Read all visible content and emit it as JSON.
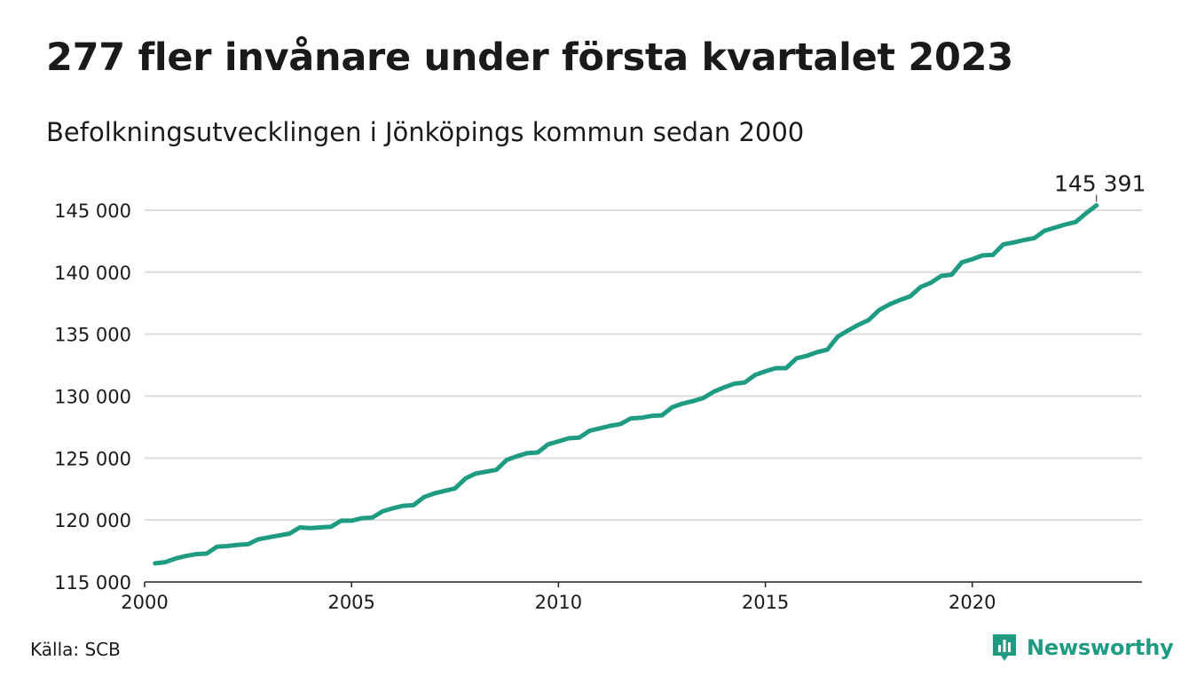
{
  "title": "277 fler invånare under första kvartalet 2023",
  "subtitle": "Befolkningsutvecklingen i Jönköpings kommun sedan 2000",
  "source": "Källa: SCB",
  "brand": {
    "name": "Newsworthy",
    "icon": "newsworthy-logo-icon",
    "color": "#1f9b83"
  },
  "chart_data": {
    "type": "line",
    "title": "277 fler invånare under första kvartalet 2023",
    "subtitle": "Befolkningsutvecklingen i Jönköpings kommun sedan 2000",
    "xlabel": "",
    "ylabel": "",
    "line_color": "#1f9b83",
    "grid": true,
    "xlim": [
      2000,
      2024.1
    ],
    "ylim": [
      115000,
      147000
    ],
    "x_ticks": [
      2000,
      2005,
      2010,
      2015,
      2020
    ],
    "x_tick_labels": [
      "2000",
      "2005",
      "2010",
      "2015",
      "2020"
    ],
    "y_ticks": [
      115000,
      120000,
      125000,
      130000,
      135000,
      140000,
      145000
    ],
    "y_tick_labels": [
      "115 000",
      "120 000",
      "125 000",
      "130 000",
      "135 000",
      "140 000",
      "145 000"
    ],
    "annotation": {
      "x": 2023.0,
      "y": 145391,
      "label": "145 391"
    },
    "series": [
      {
        "x": [
          2000.25,
          2000.5,
          2000.75,
          2001.0,
          2001.25,
          2001.5,
          2001.75,
          2002.0,
          2002.25,
          2002.5,
          2002.75,
          2003.0,
          2003.25,
          2003.5,
          2003.75,
          2004.0,
          2004.25,
          2004.5,
          2004.75,
          2005.0,
          2005.25,
          2005.5,
          2005.75,
          2006.0,
          2006.25,
          2006.5,
          2006.75,
          2007.0,
          2007.25,
          2007.5,
          2007.75,
          2008.0,
          2008.25,
          2008.5,
          2008.75,
          2009.0,
          2009.25,
          2009.5,
          2009.75,
          2010.0,
          2010.25,
          2010.5,
          2010.75,
          2011.0,
          2011.25,
          2011.5,
          2011.75,
          2012.0,
          2012.25,
          2012.5,
          2012.75,
          2013.0,
          2013.25,
          2013.5,
          2013.75,
          2014.0,
          2014.25,
          2014.5,
          2014.75,
          2015.0,
          2015.25,
          2015.5,
          2015.75,
          2016.0,
          2016.25,
          2016.5,
          2016.75,
          2017.0,
          2017.25,
          2017.5,
          2017.75,
          2018.0,
          2018.25,
          2018.5,
          2018.75,
          2019.0,
          2019.25,
          2019.5,
          2019.75,
          2020.0,
          2020.25,
          2020.5,
          2020.75,
          2021.0,
          2021.25,
          2021.5,
          2021.75,
          2022.0,
          2022.25,
          2022.5,
          2022.75,
          2023.0
        ],
        "values": [
          116500,
          116600,
          116900,
          117100,
          117250,
          117300,
          117850,
          117900,
          118000,
          118050,
          118450,
          118600,
          118750,
          118900,
          119400,
          119350,
          119400,
          119450,
          119950,
          119950,
          120150,
          120200,
          120700,
          120950,
          121150,
          121200,
          121850,
          122150,
          122350,
          122550,
          123350,
          123750,
          123900,
          124050,
          124850,
          125150,
          125400,
          125450,
          126100,
          126350,
          126600,
          126650,
          127200,
          127400,
          127600,
          127750,
          128200,
          128250,
          128400,
          128450,
          129100,
          129400,
          129600,
          129850,
          130350,
          130700,
          131000,
          131100,
          131700,
          132000,
          132250,
          132250,
          133050,
          133250,
          133550,
          133750,
          134800,
          135300,
          135750,
          136150,
          136950,
          137400,
          137750,
          138050,
          138800,
          139150,
          139700,
          139800,
          140800,
          141050,
          141350,
          141400,
          142250,
          142400,
          142600,
          142750,
          143350,
          143600,
          143850,
          144050,
          144750,
          145391
        ]
      }
    ]
  }
}
